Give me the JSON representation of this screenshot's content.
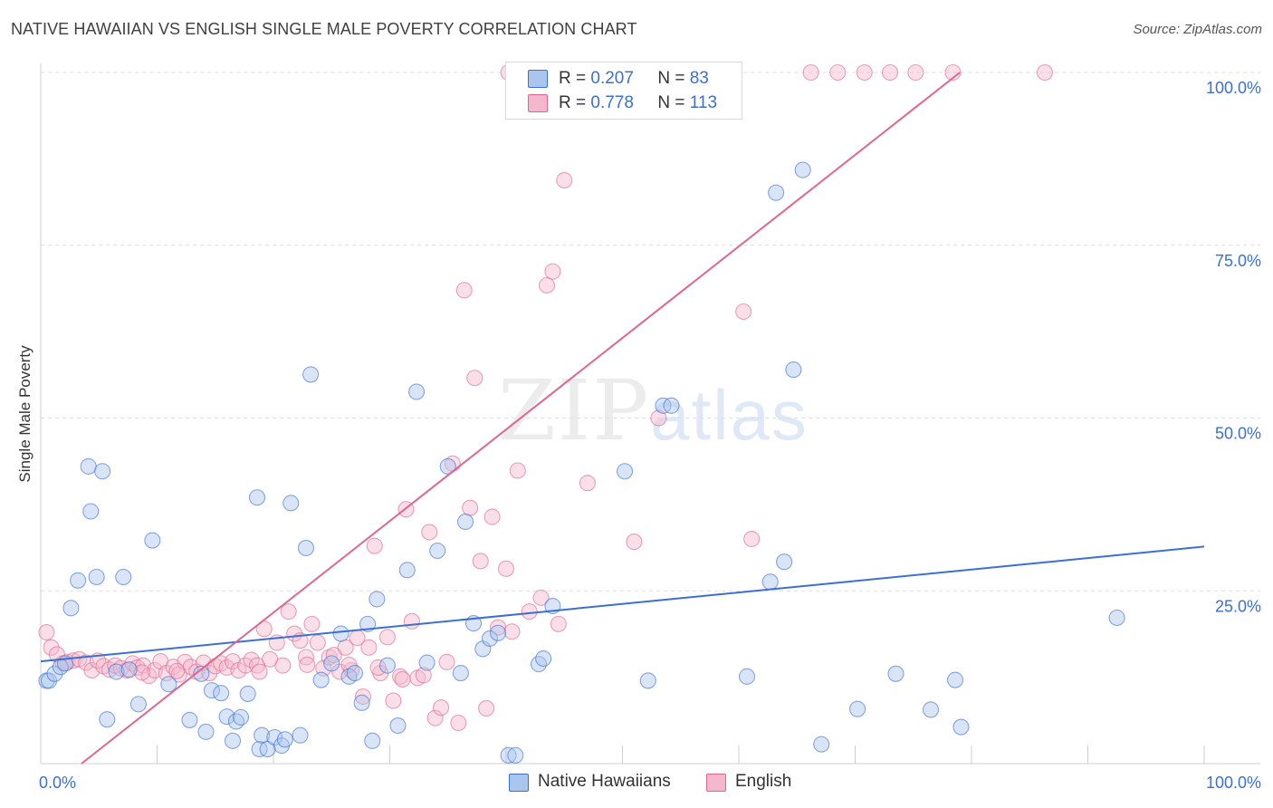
{
  "title": "NATIVE HAWAIIAN VS ENGLISH SINGLE MALE POVERTY CORRELATION CHART",
  "source": "Source: ZipAtlas.com",
  "watermark": {
    "zip": "ZIP",
    "atlas": "atlas"
  },
  "colors": {
    "blue": "#3b6fd4",
    "blue_fill": "#aac6ee",
    "pink": "#e06690",
    "pink_fill": "#f5b7cb"
  },
  "legend": {
    "rows": [
      {
        "r_label": "R =",
        "r_value": "0.207",
        "n_label": "N =",
        "n_value": "83"
      },
      {
        "r_label": "R =",
        "r_value": "0.778",
        "n_label": "N =",
        "n_value": "113"
      }
    ],
    "bottom": [
      "Native Hawaiians",
      "English"
    ]
  },
  "chart_data": {
    "type": "scatter",
    "title": "NATIVE HAWAIIAN VS ENGLISH SINGLE MALE POVERTY CORRELATION CHART",
    "xlabel": "",
    "ylabel": "Single Male Poverty",
    "xlim": [
      0,
      100
    ],
    "ylim": [
      0,
      100
    ],
    "x_tick_labels": [
      "0.0%",
      "100.0%"
    ],
    "y_tick_labels": [
      "25.0%",
      "50.0%",
      "75.0%",
      "100.0%"
    ],
    "y_ticks": [
      25,
      50,
      75,
      100
    ],
    "grid": true,
    "legend_position": "top-center",
    "series": [
      {
        "name": "Native Hawaiians",
        "color": "#3b6fd4",
        "trend": {
          "x": [
            0,
            100
          ],
          "y": [
            14.8,
            31.4
          ]
        },
        "points": [
          [
            0.5,
            12
          ],
          [
            0.7,
            12
          ],
          [
            1.2,
            13
          ],
          [
            1.7,
            14
          ],
          [
            2.1,
            14.5
          ],
          [
            2.6,
            22.5
          ],
          [
            3.2,
            26.5
          ],
          [
            4.1,
            43
          ],
          [
            4.3,
            36.5
          ],
          [
            4.8,
            27
          ],
          [
            5.3,
            42.3
          ],
          [
            5.7,
            6.4
          ],
          [
            6.5,
            13.3
          ],
          [
            7.1,
            27
          ],
          [
            7.6,
            13.6
          ],
          [
            8.4,
            8.6
          ],
          [
            9.6,
            32.3
          ],
          [
            11.0,
            11.5
          ],
          [
            12.8,
            6.3
          ],
          [
            13.8,
            13
          ],
          [
            14.2,
            4.6
          ],
          [
            14.7,
            10.6
          ],
          [
            15.5,
            10.2
          ],
          [
            16.0,
            6.8
          ],
          [
            16.5,
            3.3
          ],
          [
            16.8,
            6.1
          ],
          [
            17.2,
            6.7
          ],
          [
            17.8,
            10.1
          ],
          [
            18.6,
            38.5
          ],
          [
            18.8,
            2.1
          ],
          [
            19.0,
            4.1
          ],
          [
            19.5,
            2.1
          ],
          [
            20.1,
            3.8
          ],
          [
            20.7,
            2.6
          ],
          [
            21.0,
            3.5
          ],
          [
            21.5,
            37.7
          ],
          [
            22.3,
            4.1
          ],
          [
            22.8,
            31.2
          ],
          [
            23.2,
            56.3
          ],
          [
            24.1,
            12.1
          ],
          [
            25.0,
            14.5
          ],
          [
            25.8,
            18.8
          ],
          [
            26.5,
            12.6
          ],
          [
            27.0,
            13.1
          ],
          [
            27.6,
            8.8
          ],
          [
            28.1,
            20.2
          ],
          [
            28.5,
            3.3
          ],
          [
            28.9,
            23.8
          ],
          [
            29.8,
            14.2
          ],
          [
            30.7,
            5.5
          ],
          [
            31.5,
            28
          ],
          [
            32.3,
            53.8
          ],
          [
            33.2,
            14.6
          ],
          [
            34.1,
            30.8
          ],
          [
            35.0,
            43
          ],
          [
            36.1,
            13.1
          ],
          [
            36.5,
            35
          ],
          [
            37.2,
            20.3
          ],
          [
            38.0,
            16.6
          ],
          [
            38.6,
            18.1
          ],
          [
            39.3,
            18.9
          ],
          [
            40.2,
            1.2
          ],
          [
            40.8,
            1.2
          ],
          [
            42.8,
            14.4
          ],
          [
            43.2,
            15.2
          ],
          [
            44.0,
            22.8
          ],
          [
            50.2,
            42.3
          ],
          [
            52.2,
            12
          ],
          [
            53.5,
            51.8
          ],
          [
            54.2,
            51.8
          ],
          [
            60.7,
            12.6
          ],
          [
            62.7,
            26.3
          ],
          [
            63.2,
            82.6
          ],
          [
            63.9,
            29.2
          ],
          [
            64.7,
            57
          ],
          [
            65.5,
            85.9
          ],
          [
            67.1,
            2.8
          ],
          [
            70.2,
            7.9
          ],
          [
            73.5,
            13
          ],
          [
            76.5,
            7.8
          ],
          [
            78.6,
            12.1
          ],
          [
            79.1,
            5.3
          ],
          [
            92.5,
            21.1
          ]
        ]
      },
      {
        "name": "English",
        "color": "#e06690",
        "trend": {
          "x": [
            3.5,
            79
          ],
          "y": [
            0,
            100
          ]
        },
        "points": [
          [
            0.5,
            19
          ],
          [
            0.9,
            16.8
          ],
          [
            1.4,
            15.8
          ],
          [
            1.9,
            14.5
          ],
          [
            2.3,
            14.7
          ],
          [
            2.8,
            14.9
          ],
          [
            3.3,
            15.1
          ],
          [
            3.9,
            14.6
          ],
          [
            4.4,
            13.5
          ],
          [
            4.9,
            14.9
          ],
          [
            5.4,
            14.1
          ],
          [
            5.9,
            13.6
          ],
          [
            6.4,
            14.2
          ],
          [
            6.9,
            13.8
          ],
          [
            7.4,
            13.5
          ],
          [
            7.9,
            14.5
          ],
          [
            8.3,
            13.9
          ],
          [
            8.8,
            14.2
          ],
          [
            9.3,
            12.7
          ],
          [
            9.8,
            13.5
          ],
          [
            10.3,
            14.8
          ],
          [
            10.8,
            13.1
          ],
          [
            11.4,
            14
          ],
          [
            11.9,
            12.9
          ],
          [
            12.4,
            14.7
          ],
          [
            12.9,
            14
          ],
          [
            13.4,
            13.3
          ],
          [
            14.0,
            14.6
          ],
          [
            14.5,
            13.1
          ],
          [
            15.0,
            14.1
          ],
          [
            15.5,
            14.5
          ],
          [
            16.0,
            13.9
          ],
          [
            16.5,
            14.8
          ],
          [
            17.0,
            13.5
          ],
          [
            17.6,
            14.2
          ],
          [
            18.1,
            15
          ],
          [
            18.6,
            14.2
          ],
          [
            19.2,
            19.5
          ],
          [
            19.7,
            15.1
          ],
          [
            20.3,
            17.5
          ],
          [
            20.8,
            14.2
          ],
          [
            21.3,
            22
          ],
          [
            21.8,
            18.8
          ],
          [
            22.3,
            17.8
          ],
          [
            22.8,
            15.4
          ],
          [
            23.3,
            20.2
          ],
          [
            23.8,
            17.5
          ],
          [
            24.3,
            13.8
          ],
          [
            24.8,
            15.4
          ],
          [
            25.2,
            15.7
          ],
          [
            25.7,
            13.3
          ],
          [
            26.2,
            16.8
          ],
          [
            26.7,
            13.5
          ],
          [
            27.2,
            18.2
          ],
          [
            27.7,
            9.7
          ],
          [
            28.2,
            16.8
          ],
          [
            28.7,
            31.5
          ],
          [
            29.2,
            13.1
          ],
          [
            29.8,
            18.3
          ],
          [
            30.3,
            9.1
          ],
          [
            30.9,
            12.6
          ],
          [
            31.4,
            36.8
          ],
          [
            31.9,
            20.6
          ],
          [
            32.4,
            12.4
          ],
          [
            32.9,
            12.8
          ],
          [
            33.4,
            33.5
          ],
          [
            33.9,
            6.6
          ],
          [
            34.4,
            8.1
          ],
          [
            34.9,
            14.7
          ],
          [
            35.4,
            43.4
          ],
          [
            35.9,
            5.9
          ],
          [
            36.4,
            68.5
          ],
          [
            36.9,
            37
          ],
          [
            37.3,
            55.8
          ],
          [
            37.8,
            29.3
          ],
          [
            38.3,
            8
          ],
          [
            38.8,
            35.7
          ],
          [
            39.3,
            19.7
          ],
          [
            40.0,
            28.2
          ],
          [
            40.5,
            19.1
          ],
          [
            41.0,
            42.4
          ],
          [
            42.0,
            22
          ],
          [
            43.0,
            24
          ],
          [
            43.5,
            69.2
          ],
          [
            44.0,
            71.2
          ],
          [
            44.5,
            20.2
          ],
          [
            45.0,
            84.4
          ],
          [
            47.0,
            40.6
          ],
          [
            51.0,
            32.1
          ],
          [
            53.1,
            50
          ],
          [
            60.4,
            65.4
          ],
          [
            61.1,
            32.5
          ],
          [
            40.2,
            100
          ],
          [
            47.1,
            100
          ],
          [
            47.6,
            100
          ],
          [
            48.1,
            100
          ],
          [
            52.3,
            100
          ],
          [
            55.0,
            100
          ],
          [
            55.8,
            100
          ],
          [
            66.2,
            100
          ],
          [
            68.5,
            100
          ],
          [
            70.8,
            100
          ],
          [
            73.0,
            100
          ],
          [
            75.2,
            100
          ],
          [
            78.4,
            100
          ],
          [
            86.3,
            100
          ],
          [
            11.7,
            13.4
          ],
          [
            8.7,
            13.2
          ],
          [
            22.9,
            14.3
          ],
          [
            26.5,
            14.3
          ],
          [
            18.8,
            13.3
          ],
          [
            29.0,
            13.9
          ],
          [
            31.1,
            12.2
          ]
        ]
      }
    ]
  }
}
